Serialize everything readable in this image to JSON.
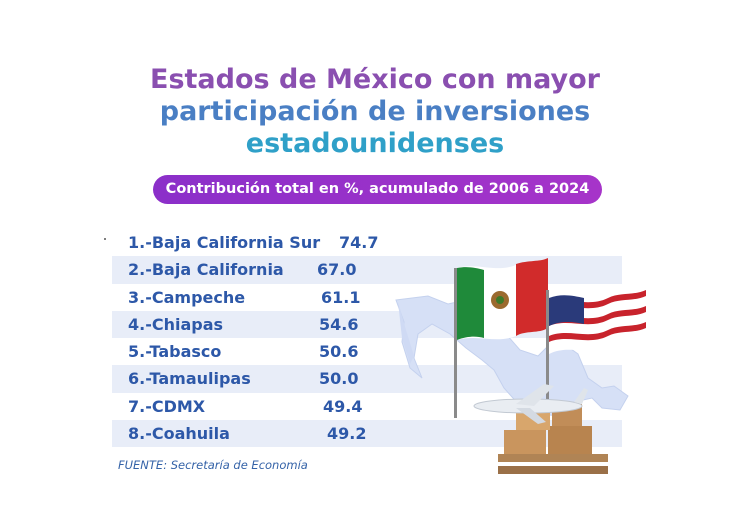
{
  "title": {
    "line1": "Estados de México con mayor",
    "line2": "participación  de inversiones",
    "line3": "estadounidenses"
  },
  "subtitle": "Contribución total en %, acumulado de 2006 a 2024",
  "source": "FUENTE: Secretaría de Economía",
  "colors": {
    "accent": "#9b30c8",
    "text": "#2d58a8",
    "row_shade": "#e8edf8"
  },
  "chart_data": {
    "type": "table",
    "title": "Estados de México con mayor participación  de inversiones estadounidenses",
    "subtitle": "Contribución total en %, acumulado de 2006 a 2024",
    "categories": [
      "1.-Baja California Sur",
      "2.-Baja California",
      "3.-Campeche",
      "4.-Chiapas",
      "5.-Tabasco",
      "6.-Tamaulipas",
      "7.-CDMX",
      "8.-Coahuila"
    ],
    "values": [
      "74.7",
      "67.0",
      "61.1",
      "54.6",
      "50.6",
      "50.0",
      "49.4",
      "49.2"
    ]
  },
  "illustration": {
    "icons": [
      "mexico-map-icon",
      "mexico-flag-icon",
      "usa-flag-icon",
      "airplane-icon",
      "boxes-icon"
    ]
  }
}
